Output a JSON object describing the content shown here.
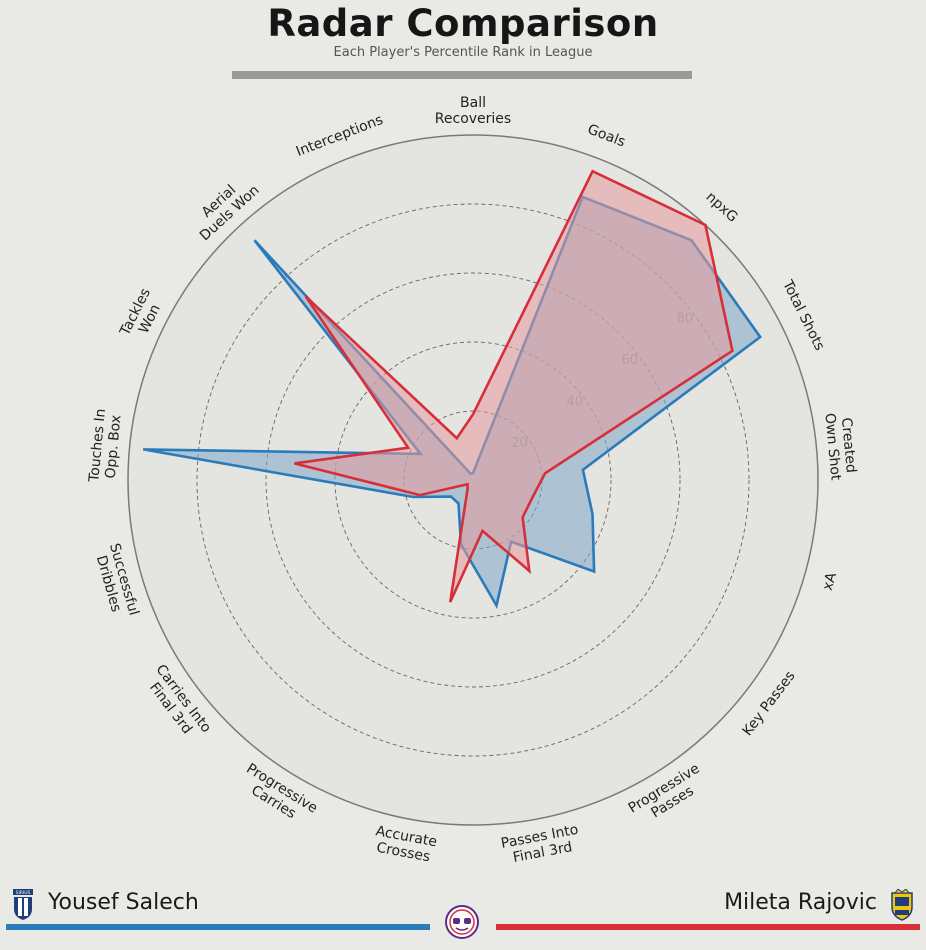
{
  "header": {
    "title": "Radar Comparison",
    "subtitle": "Each Player's Percentile Rank in League"
  },
  "players": [
    {
      "name": "Yousef Salech",
      "color": "#2b7bba",
      "fill": "#7fa8c8",
      "badge_icon": "sirius-crest-icon"
    },
    {
      "name": "Mileta Rajovic",
      "color": "#d62f3a",
      "fill": "#e69a9c",
      "badge_icon": "brondby-crest-icon"
    }
  ],
  "center_logo_icon": "data-logo-icon",
  "chart_data": {
    "type": "radar",
    "title": "Radar Comparison",
    "subtitle": "Each Player's Percentile Rank in League",
    "scale_min": 0,
    "scale_max": 100,
    "ring_values": [
      20,
      40,
      60,
      80
    ],
    "ring_labels": [
      "20",
      "40",
      "60",
      "80"
    ],
    "grid": true,
    "legend": "bottom",
    "categories": [
      "Ball\nRecoveries",
      "Goals",
      "npxG",
      "Total Shots",
      "Created\nOwn Shot",
      "xA",
      "Key Passes",
      "Progressive\nPasses",
      "Passes Into\nFinal 3rd",
      "Accurate\nCrosses",
      "Progressive\nCarries",
      "Carries Into\nFinal 3rd",
      "Successful\nDribbles",
      "Touches In\nOpp. Box",
      "Tackles\nWon",
      "Aerial\nDuels Won",
      "Interceptions"
    ],
    "series": [
      {
        "name": "Yousef Salech",
        "values": [
          2,
          88,
          94,
          93,
          32,
          36,
          44,
          21,
          37,
          19,
          8,
          8,
          18,
          96,
          17,
          94,
          2
        ]
      },
      {
        "name": "Mileta Rajovic",
        "values": [
          19,
          96,
          100,
          84,
          21,
          18,
          18,
          31,
          15,
          36,
          3,
          2,
          16,
          52,
          21,
          72,
          13
        ]
      }
    ]
  }
}
